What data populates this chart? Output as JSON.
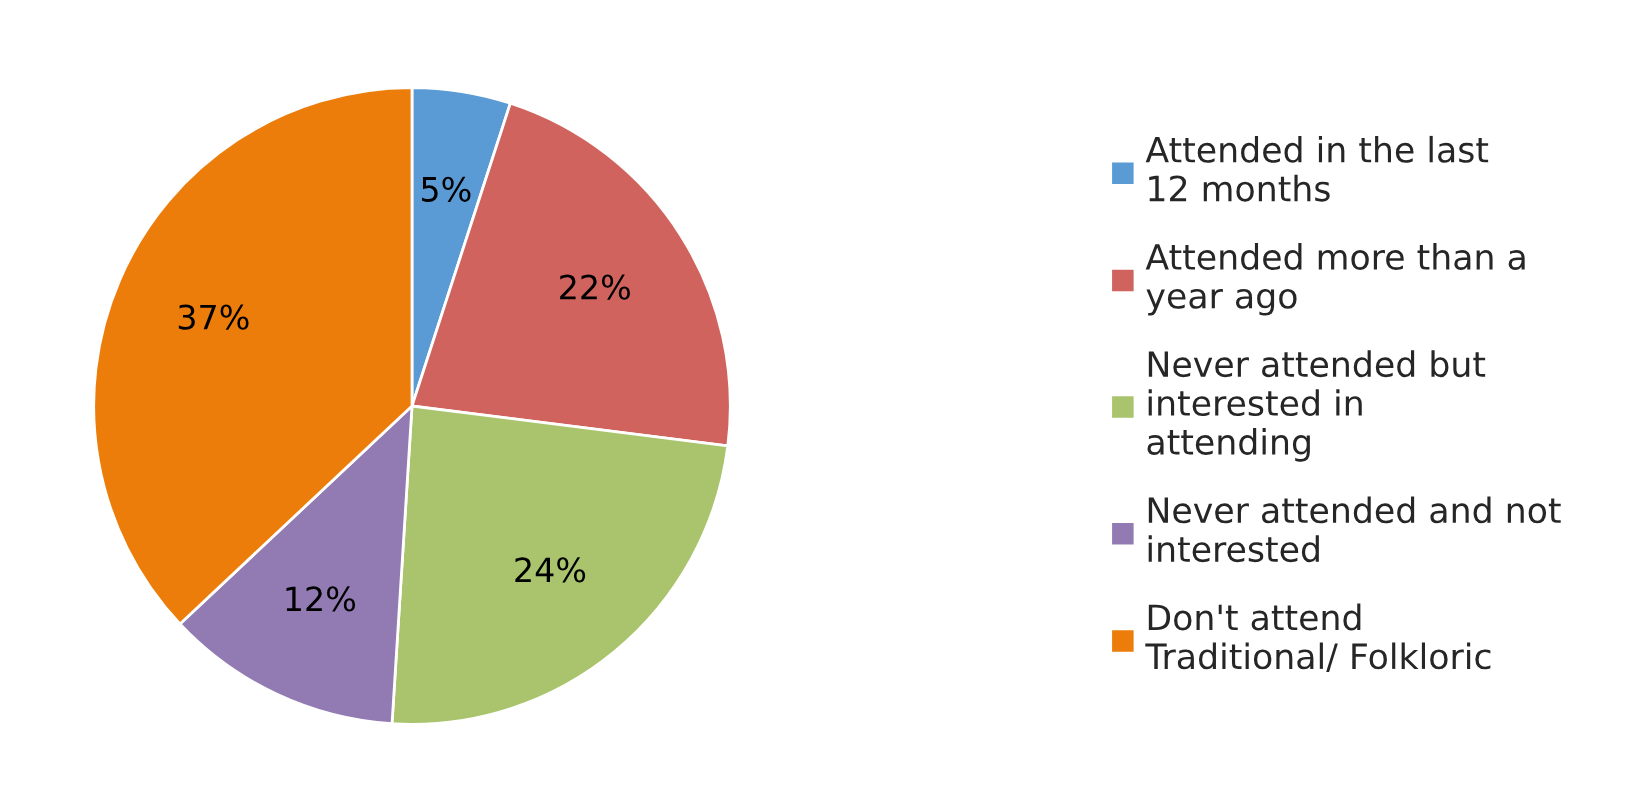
{
  "chart_data": {
    "type": "pie",
    "categories": [
      "Attended in the last 12 months",
      "Attended more than a year ago",
      "Never attended but interested in attending",
      "Never attended and not interested",
      "Don't attend Traditional/ Folkloric"
    ],
    "values": [
      5,
      22,
      24,
      12,
      37
    ],
    "colors": [
      "#5b9bd5",
      "#d0635d",
      "#a9c46c",
      "#927bb2",
      "#ed7d0a"
    ],
    "value_labels": [
      "5%",
      "22%",
      "24%",
      "12%",
      "37%"
    ],
    "legend": "right"
  }
}
